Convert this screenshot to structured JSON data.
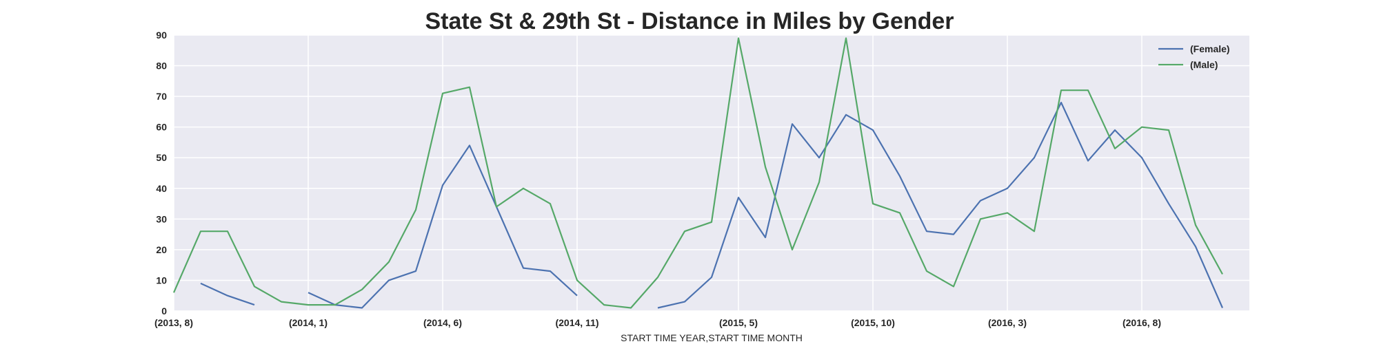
{
  "chart_data": {
    "type": "line",
    "title": "State St & 29th St - Distance in Miles by Gender",
    "xlabel": "START TIME YEAR,START TIME MONTH",
    "ylabel": "",
    "ylim": [
      0,
      90
    ],
    "yticks": [
      0,
      10,
      20,
      30,
      40,
      50,
      60,
      70,
      80,
      90
    ],
    "xticks": [
      "(2013, 8)",
      "(2014, 1)",
      "(2014, 6)",
      "(2014, 11)",
      "(2015, 5)",
      "(2015, 10)",
      "(2016, 3)",
      "(2016, 8)"
    ],
    "categories": [
      "(2013, 8)",
      "(2013, 9)",
      "(2013, 10)",
      "(2013, 11)",
      "(2013, 12)",
      "(2014, 1)",
      "(2014, 2)",
      "(2014, 3)",
      "(2014, 4)",
      "(2014, 5)",
      "(2014, 6)",
      "(2014, 7)",
      "(2014, 8)",
      "(2014, 9)",
      "(2014, 10)",
      "(2014, 11)",
      "(2014, 12)",
      "(2015, 1)",
      "(2015, 2)",
      "(2015, 3)",
      "(2015, 4)",
      "(2015, 5)",
      "(2015, 6)",
      "(2015, 7)",
      "(2015, 8)",
      "(2015, 9)",
      "(2015, 10)",
      "(2015, 11)",
      "(2015, 12)",
      "(2016, 1)",
      "(2016, 2)",
      "(2016, 3)",
      "(2016, 4)",
      "(2016, 5)",
      "(2016, 6)",
      "(2016, 7)",
      "(2016, 8)",
      "(2016, 9)",
      "(2016, 10)",
      "(2016, 11)",
      "(2016, 12)"
    ],
    "grid": true,
    "legend_position": "top-right",
    "series": [
      {
        "name": "(Female)",
        "color": "#4c72b0",
        "values": [
          null,
          9,
          5,
          2,
          null,
          6,
          2,
          1,
          10,
          13,
          41,
          54,
          34,
          14,
          13,
          5,
          null,
          null,
          1,
          3,
          11,
          37,
          24,
          61,
          50,
          64,
          59,
          44,
          26,
          25,
          36,
          40,
          50,
          68,
          49,
          59,
          50,
          35,
          21,
          1,
          null
        ]
      },
      {
        "name": "(Male)",
        "color": "#55a868",
        "values": [
          6,
          26,
          26,
          8,
          3,
          2,
          2,
          7,
          16,
          33,
          71,
          73,
          34,
          40,
          35,
          10,
          2,
          1,
          11,
          26,
          29,
          89,
          47,
          20,
          42,
          89,
          35,
          32,
          13,
          8,
          30,
          32,
          26,
          72,
          72,
          53,
          60,
          59,
          28,
          12,
          null
        ]
      }
    ]
  }
}
